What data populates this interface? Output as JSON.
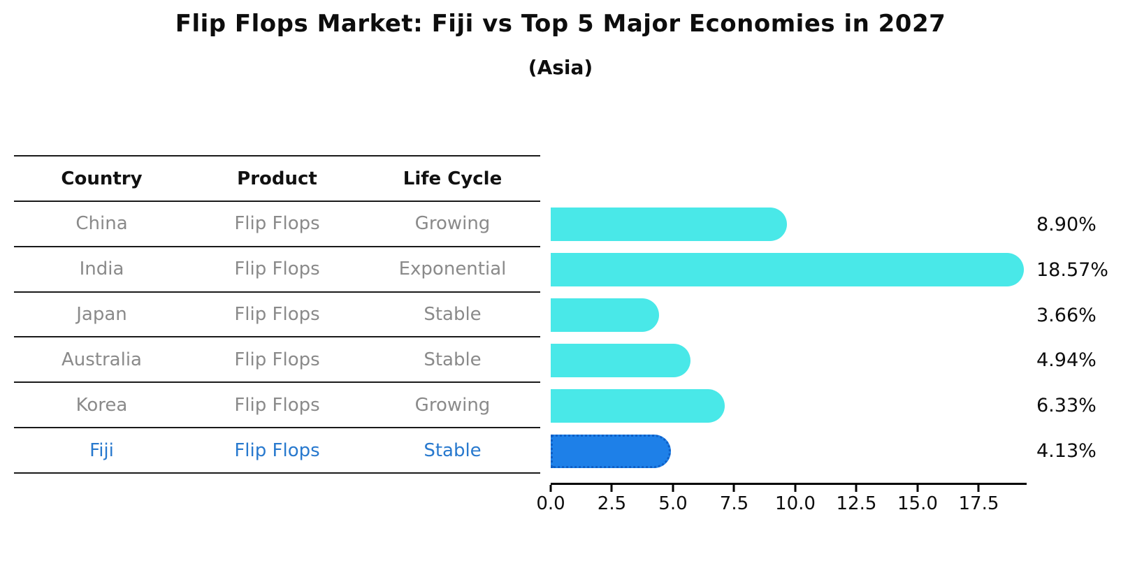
{
  "title": "Flip Flops Market: Fiji vs Top 5 Major Economies in 2027",
  "subtitle": "(Asia)",
  "table": {
    "headers": [
      "Country",
      "Product",
      "Life Cycle"
    ],
    "rows": [
      {
        "country": "China",
        "product": "Flip Flops",
        "life_cycle": "Growing",
        "highlight": false
      },
      {
        "country": "India",
        "product": "Flip Flops",
        "life_cycle": "Exponential",
        "highlight": false
      },
      {
        "country": "Japan",
        "product": "Flip Flops",
        "life_cycle": "Stable",
        "highlight": false
      },
      {
        "country": "Australia",
        "product": "Flip Flops",
        "life_cycle": "Stable",
        "highlight": false
      },
      {
        "country": "Korea",
        "product": "Flip Flops",
        "life_cycle": "Growing",
        "highlight": false
      },
      {
        "country": "Fiji",
        "product": "Flip Flops",
        "life_cycle": "Stable",
        "highlight": true
      }
    ]
  },
  "chart_data": {
    "type": "bar",
    "orientation": "horizontal",
    "title": "Flip Flops Market: Fiji vs Top 5 Major Economies in 2027",
    "subtitle": "(Asia)",
    "categories": [
      "China",
      "India",
      "Japan",
      "Australia",
      "Korea",
      "Fiji"
    ],
    "values": [
      8.9,
      18.57,
      3.66,
      4.94,
      6.33,
      4.13
    ],
    "value_labels": [
      "8.90%",
      "18.57%",
      "3.66%",
      "4.94%",
      "6.33%",
      "4.13%"
    ],
    "xlim": [
      0,
      19.43
    ],
    "x_ticks": [
      "0.0",
      "2.5",
      "5.0",
      "7.5",
      "10.0",
      "12.5",
      "15.0",
      "17.5"
    ],
    "grid": false,
    "legend": false,
    "highlight_category": "Fiji"
  },
  "colors": {
    "bar_default": "#49E8E8",
    "bar_highlight": "#1E80E8",
    "bar_highlight_border": "#0E5FC6",
    "row_text": "#8a8a8a",
    "highlight_text": "#2879CE",
    "axis": "#000000"
  }
}
